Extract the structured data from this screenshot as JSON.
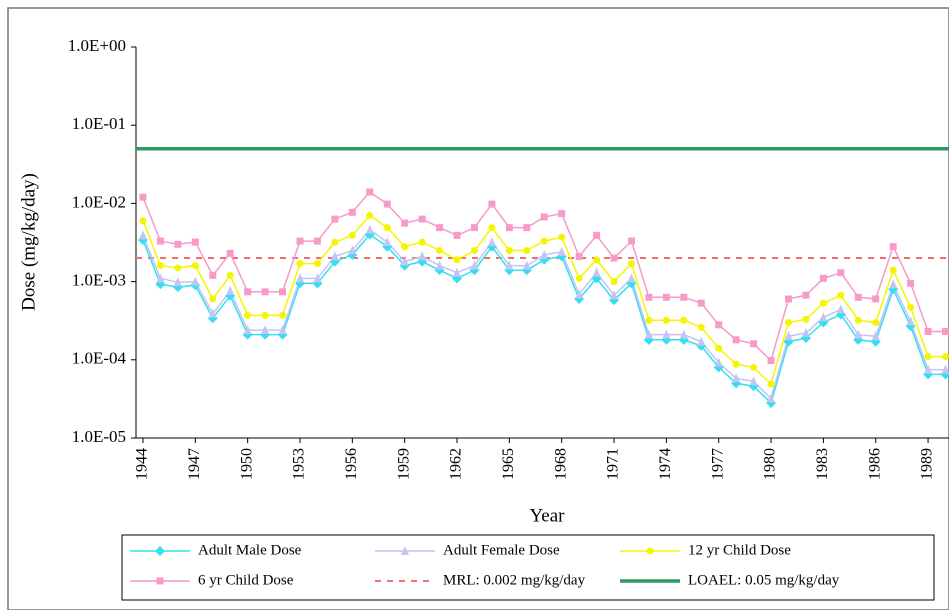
{
  "chart_data": {
    "type": "line",
    "y_axis_label": "Dose (mg/kg/day)",
    "x_axis_label": "Year",
    "y_scale": "log",
    "ylim": [
      1e-05,
      1
    ],
    "yticks": [
      {
        "value": 1e-05,
        "label": "1.0E-05"
      },
      {
        "value": 0.0001,
        "label": "1.0E-04"
      },
      {
        "value": 0.001,
        "label": "1.0E-03"
      },
      {
        "value": 0.01,
        "label": "1.0E-02"
      },
      {
        "value": 0.1,
        "label": "1.0E-01"
      },
      {
        "value": 1,
        "label": "1.0E+00"
      }
    ],
    "xlim": [
      1943.6,
      1990.2
    ],
    "xticks": [
      1944,
      1947,
      1950,
      1953,
      1956,
      1959,
      1962,
      1965,
      1968,
      1971,
      1974,
      1977,
      1980,
      1983,
      1986,
      1989
    ],
    "x": [
      1944,
      1945,
      1946,
      1947,
      1948,
      1949,
      1950,
      1951,
      1952,
      1953,
      1954,
      1955,
      1956,
      1957,
      1958,
      1959,
      1960,
      1961,
      1962,
      1963,
      1964,
      1965,
      1966,
      1967,
      1968,
      1969,
      1970,
      1971,
      1972,
      1973,
      1974,
      1975,
      1976,
      1977,
      1978,
      1979,
      1980,
      1981,
      1982,
      1983,
      1984,
      1985,
      1986,
      1987,
      1988,
      1989,
      1990
    ],
    "series": [
      {
        "name": "Adult Male Dose",
        "color": "#33dff0",
        "marker": "diamond",
        "values": [
          0.0034,
          0.00093,
          0.00085,
          0.0009,
          0.00034,
          0.00066,
          0.00021,
          0.00021,
          0.00021,
          0.00095,
          0.00095,
          0.0018,
          0.0022,
          0.004,
          0.0028,
          0.0016,
          0.0018,
          0.0014,
          0.0011,
          0.0014,
          0.0028,
          0.0014,
          0.0014,
          0.0019,
          0.0021,
          0.0006,
          0.0011,
          0.00058,
          0.00095,
          0.00018,
          0.00018,
          0.00018,
          0.00015,
          8e-05,
          5e-05,
          4.6e-05,
          2.8e-05,
          0.00017,
          0.00019,
          0.0003,
          0.00038,
          0.00018,
          0.00017,
          0.0008,
          0.00027,
          6.5e-05,
          6.5e-05
        ]
      },
      {
        "name": "Adult Female Dose",
        "color": "#c4c4f4",
        "marker": "triangle",
        "values": [
          0.0039,
          0.0011,
          0.00098,
          0.001,
          0.00039,
          0.00076,
          0.00024,
          0.00024,
          0.00024,
          0.0011,
          0.0011,
          0.0021,
          0.0025,
          0.0046,
          0.0032,
          0.0018,
          0.0021,
          0.0016,
          0.0013,
          0.0016,
          0.0032,
          0.0016,
          0.0016,
          0.0022,
          0.0024,
          0.00069,
          0.0013,
          0.00067,
          0.0011,
          0.00021,
          0.00021,
          0.00021,
          0.00017,
          9.2e-05,
          5.8e-05,
          5.3e-05,
          3.2e-05,
          0.0002,
          0.00022,
          0.00035,
          0.00044,
          0.00021,
          0.0002,
          0.00092,
          0.00031,
          7.5e-05,
          7.5e-05
        ]
      },
      {
        "name": "12 yr Child Dose",
        "color": "#f5f500",
        "marker": "circle",
        "values": [
          0.006,
          0.0016,
          0.0015,
          0.0016,
          0.0006,
          0.0012,
          0.00037,
          0.00037,
          0.00037,
          0.0017,
          0.0017,
          0.0032,
          0.0039,
          0.007,
          0.0049,
          0.0028,
          0.0032,
          0.0025,
          0.0019,
          0.0025,
          0.0049,
          0.0025,
          0.0025,
          0.0033,
          0.0037,
          0.0011,
          0.0019,
          0.001,
          0.0017,
          0.00032,
          0.00032,
          0.00032,
          0.00026,
          0.00014,
          8.8e-05,
          8e-05,
          4.9e-05,
          0.0003,
          0.00033,
          0.00053,
          0.00067,
          0.00032,
          0.0003,
          0.0014,
          0.00047,
          0.00011,
          0.00011
        ]
      },
      {
        "name": "6 yr Child Dose",
        "color": "#f79ac8",
        "marker": "square",
        "values": [
          0.012,
          0.0033,
          0.003,
          0.0032,
          0.0012,
          0.0023,
          0.00074,
          0.00074,
          0.00074,
          0.0033,
          0.0033,
          0.0063,
          0.0077,
          0.014,
          0.0098,
          0.0056,
          0.0063,
          0.0049,
          0.0039,
          0.0049,
          0.0098,
          0.0049,
          0.0049,
          0.0067,
          0.0074,
          0.0021,
          0.0039,
          0.002,
          0.0033,
          0.00063,
          0.00063,
          0.00063,
          0.00053,
          0.00028,
          0.00018,
          0.00016,
          9.8e-05,
          0.0006,
          0.00067,
          0.0011,
          0.0013,
          0.00063,
          0.0006,
          0.0028,
          0.00095,
          0.00023,
          0.00023
        ]
      }
    ],
    "reference_lines": [
      {
        "name": "MRL: 0.002 mg/kg/day",
        "value": 0.002,
        "color": "#f26d6d",
        "dashed": true
      },
      {
        "name": "LOAEL: 0.05 mg/kg/day",
        "value": 0.05,
        "color": "#2e9a5c",
        "dashed": false
      }
    ]
  }
}
